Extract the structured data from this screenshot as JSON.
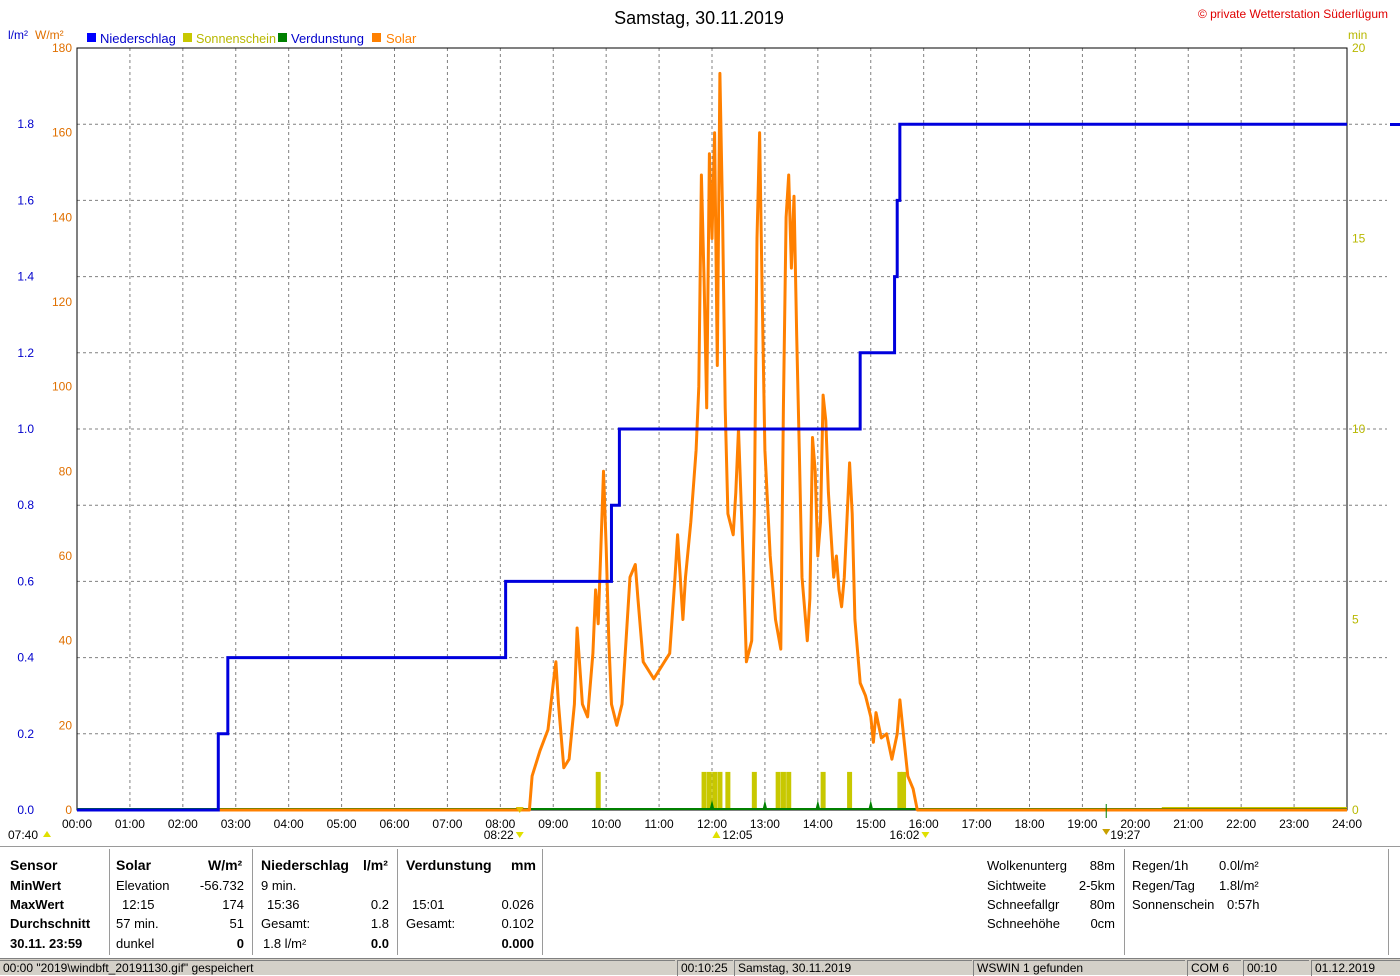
{
  "title": "Samstag, 30.11.2019",
  "copyright": "© private Wetterstation Süderlügum",
  "left_units": {
    "rain": "l/m²",
    "solar": "W/m²"
  },
  "right_unit": "min",
  "legend": [
    {
      "label": "Niederschlag",
      "color": "#0000ff"
    },
    {
      "label": "Sonnenschein",
      "color": "#c8c800"
    },
    {
      "label": "Verdunstung",
      "color": "#008000"
    },
    {
      "label": "Solar",
      "color": "#ff8000"
    }
  ],
  "time_labels": [
    "00:00",
    "01:00",
    "02:00",
    "03:00",
    "04:00",
    "05:00",
    "06:00",
    "07:00",
    "08:00",
    "09:00",
    "10:00",
    "11:00",
    "12:00",
    "13:00",
    "14:00",
    "15:00",
    "16:00",
    "17:00",
    "18:00",
    "19:00",
    "20:00",
    "21:00",
    "22:00",
    "23:00",
    "24:00"
  ],
  "rain_ticks": [
    "0.0",
    "0.2",
    "0.4",
    "0.6",
    "0.8",
    "1.0",
    "1.2",
    "1.4",
    "1.6",
    "1.8"
  ],
  "solar_ticks": [
    "0",
    "20",
    "40",
    "60",
    "80",
    "100",
    "120",
    "140",
    "160",
    "180"
  ],
  "min_ticks": [
    "0",
    "5",
    "10",
    "15",
    "20"
  ],
  "markers": {
    "civil_dawn": "07:40",
    "sunrise": "08:22",
    "solar_noon": "12:05",
    "sunset": "16:02",
    "civil_dusk": "19:27"
  },
  "chart_data": {
    "type": "line",
    "title": "Samstag, 30.11.2019",
    "x_range_hours": [
      0,
      24
    ],
    "y_left_rain": {
      "unit": "l/m²",
      "range": [
        0,
        2.0
      ]
    },
    "y_left_solar": {
      "unit": "W/m²",
      "range": [
        0,
        180
      ]
    },
    "y_right_sunshine": {
      "unit": "min",
      "range": [
        0,
        20
      ]
    },
    "grid": true,
    "series": [
      {
        "name": "Niederschlag",
        "unit": "l/m²",
        "kind": "step",
        "points": [
          [
            0,
            0
          ],
          [
            2.65,
            0
          ],
          [
            2.67,
            0.2
          ],
          [
            2.8,
            0.2
          ],
          [
            2.85,
            0.4
          ],
          [
            8.05,
            0.4
          ],
          [
            8.1,
            0.6
          ],
          [
            10.05,
            0.6
          ],
          [
            10.1,
            0.8
          ],
          [
            10.2,
            0.8
          ],
          [
            10.25,
            1.0
          ],
          [
            14.75,
            1.0
          ],
          [
            14.8,
            1.2
          ],
          [
            15.4,
            1.2
          ],
          [
            15.45,
            1.4
          ],
          [
            15.5,
            1.6
          ],
          [
            15.55,
            1.8
          ],
          [
            24,
            1.8
          ]
        ]
      },
      {
        "name": "Solar",
        "unit": "W/m²",
        "points": [
          [
            8.55,
            0
          ],
          [
            8.6,
            8
          ],
          [
            8.75,
            14
          ],
          [
            8.9,
            19
          ],
          [
            9.0,
            30
          ],
          [
            9.05,
            35
          ],
          [
            9.1,
            25
          ],
          [
            9.2,
            10
          ],
          [
            9.3,
            12
          ],
          [
            9.4,
            25
          ],
          [
            9.45,
            43
          ],
          [
            9.55,
            25
          ],
          [
            9.65,
            22
          ],
          [
            9.75,
            37
          ],
          [
            9.8,
            52
          ],
          [
            9.85,
            44
          ],
          [
            9.9,
            62
          ],
          [
            9.95,
            80
          ],
          [
            10.0,
            62
          ],
          [
            10.05,
            40
          ],
          [
            10.1,
            25
          ],
          [
            10.2,
            20
          ],
          [
            10.3,
            25
          ],
          [
            10.35,
            35
          ],
          [
            10.45,
            55
          ],
          [
            10.55,
            58
          ],
          [
            10.6,
            50
          ],
          [
            10.7,
            35
          ],
          [
            10.8,
            33
          ],
          [
            10.9,
            31
          ],
          [
            11.0,
            33
          ],
          [
            11.1,
            35
          ],
          [
            11.2,
            37
          ],
          [
            11.3,
            55
          ],
          [
            11.35,
            65
          ],
          [
            11.45,
            45
          ],
          [
            11.5,
            55
          ],
          [
            11.6,
            68
          ],
          [
            11.7,
            85
          ],
          [
            11.75,
            100
          ],
          [
            11.8,
            150
          ],
          [
            11.85,
            125
          ],
          [
            11.9,
            95
          ],
          [
            11.95,
            155
          ],
          [
            12.0,
            135
          ],
          [
            12.05,
            160
          ],
          [
            12.1,
            105
          ],
          [
            12.15,
            174
          ],
          [
            12.2,
            140
          ],
          [
            12.25,
            95
          ],
          [
            12.3,
            70
          ],
          [
            12.4,
            65
          ],
          [
            12.45,
            75
          ],
          [
            12.5,
            90
          ],
          [
            12.6,
            55
          ],
          [
            12.65,
            35
          ],
          [
            12.75,
            40
          ],
          [
            12.8,
            70
          ],
          [
            12.85,
            135
          ],
          [
            12.9,
            160
          ],
          [
            12.95,
            120
          ],
          [
            13.0,
            85
          ],
          [
            13.1,
            60
          ],
          [
            13.2,
            45
          ],
          [
            13.3,
            38
          ],
          [
            13.35,
            95
          ],
          [
            13.4,
            140
          ],
          [
            13.45,
            150
          ],
          [
            13.5,
            128
          ],
          [
            13.55,
            145
          ],
          [
            13.6,
            112
          ],
          [
            13.65,
            85
          ],
          [
            13.7,
            55
          ],
          [
            13.8,
            40
          ],
          [
            13.85,
            50
          ],
          [
            13.9,
            88
          ],
          [
            13.95,
            80
          ],
          [
            14.0,
            60
          ],
          [
            14.05,
            68
          ],
          [
            14.1,
            98
          ],
          [
            14.15,
            92
          ],
          [
            14.2,
            75
          ],
          [
            14.3,
            55
          ],
          [
            14.35,
            60
          ],
          [
            14.4,
            52
          ],
          [
            14.45,
            48
          ],
          [
            14.5,
            55
          ],
          [
            14.6,
            82
          ],
          [
            14.65,
            70
          ],
          [
            14.7,
            45
          ],
          [
            14.8,
            30
          ],
          [
            14.9,
            27
          ],
          [
            15.0,
            22
          ],
          [
            15.05,
            16
          ],
          [
            15.1,
            23
          ],
          [
            15.2,
            17
          ],
          [
            15.3,
            18
          ],
          [
            15.4,
            12
          ],
          [
            15.5,
            18
          ],
          [
            15.55,
            26
          ],
          [
            15.6,
            20
          ],
          [
            15.7,
            8
          ],
          [
            15.8,
            5
          ],
          [
            15.88,
            0
          ],
          [
            24,
            0
          ]
        ]
      },
      {
        "name": "Sonnenschein",
        "unit": "min",
        "bars": [
          [
            9.85,
            1.0
          ],
          [
            11.85,
            1.0
          ],
          [
            11.95,
            1.0
          ],
          [
            12.05,
            1.0
          ],
          [
            12.15,
            1.0
          ],
          [
            12.3,
            1.0
          ],
          [
            12.8,
            1.0
          ],
          [
            13.25,
            1.0
          ],
          [
            13.35,
            1.0
          ],
          [
            13.45,
            1.0
          ],
          [
            14.1,
            1.0
          ],
          [
            14.6,
            1.0
          ],
          [
            15.55,
            1.0
          ],
          [
            15.62,
            1.0
          ]
        ]
      },
      {
        "name": "Verdunstung",
        "unit": "mm",
        "markers_at": [
          12.0,
          13.0,
          14.0,
          15.0
        ]
      }
    ]
  },
  "panel": {
    "col1": {
      "header": "Sensor",
      "rows": [
        "MinWert",
        "MaxWert",
        "Durchschnitt",
        "30.11. 23:59"
      ]
    },
    "col2": {
      "header": "Solar",
      "unit": "W/m²",
      "rows": [
        [
          "Elevation",
          "-56.732"
        ],
        [
          "12:15",
          "174"
        ],
        [
          "57 min.",
          "51"
        ],
        [
          "dunkel",
          "0"
        ]
      ]
    },
    "col3": {
      "header": "Niederschlag",
      "unit": "l/m²",
      "rows": [
        [
          "9 min.",
          ""
        ],
        [
          "15:36",
          "0.2"
        ],
        [
          "Gesamt:",
          "1.8"
        ],
        [
          "1.8 l/m²",
          "0.0"
        ]
      ]
    },
    "col4": {
      "header": "Verdunstung",
      "unit": "mm",
      "rows": [
        [
          "",
          ""
        ],
        [
          "15:01",
          "0.026"
        ],
        [
          "Gesamt:",
          "0.102"
        ],
        [
          "",
          "0.000"
        ]
      ]
    },
    "col5": {
      "rows": [
        [
          "Wolkenunterg",
          "88m"
        ],
        [
          "Sichtweite",
          "2-5km"
        ],
        [
          "Schneefallgr",
          "80m"
        ],
        [
          "Schneehöhe",
          "0cm"
        ]
      ]
    },
    "col6": {
      "rows": [
        [
          "Regen/1h",
          "0.0l/m²"
        ],
        [
          "Regen/Tag",
          "1.8l/m²"
        ],
        [
          "Sonnenschein",
          "0:57h"
        ]
      ]
    }
  },
  "statusbar": {
    "msg": "00:00 \"2019\\windbft_20191130.gif\" gespeichert",
    "time": "00:10:25",
    "date": "Samstag, 30.11.2019",
    "status": "WSWIN 1 gefunden",
    "port": "COM 6",
    "clock": "00:10",
    "today": "01.12.2019"
  }
}
